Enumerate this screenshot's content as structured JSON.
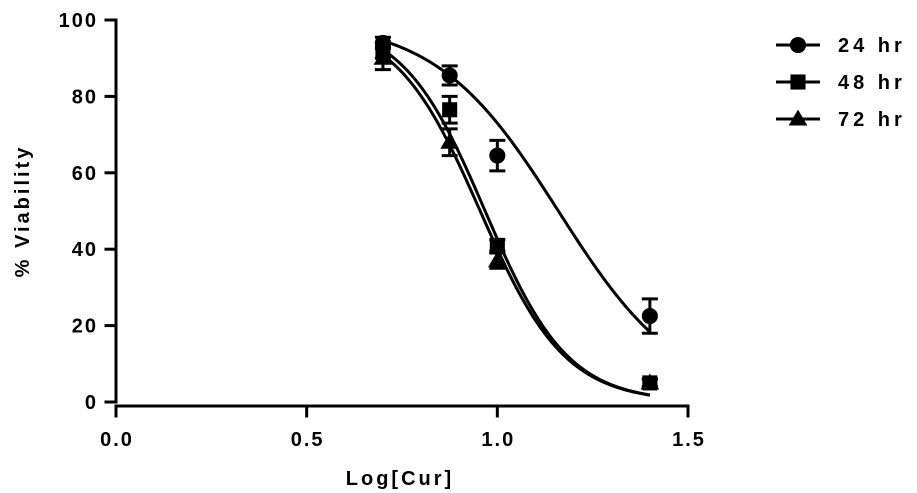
{
  "chart_data": {
    "type": "scatter",
    "title": "",
    "xlabel": "Log[Cur]",
    "ylabel": "% Viability",
    "xlim": [
      0.0,
      1.5
    ],
    "ylim": [
      0,
      100
    ],
    "x_ticks": [
      "0.0",
      "0.5",
      "1.0",
      "1.5"
    ],
    "y_ticks": [
      "0",
      "20",
      "40",
      "60",
      "80",
      "100"
    ],
    "x_tick_values": [
      0.0,
      0.5,
      1.0,
      1.5
    ],
    "y_tick_values": [
      0,
      20,
      40,
      60,
      80,
      100
    ],
    "grid": false,
    "legend_position": "top-right",
    "fit": "sigmoidal dose-response curve per series",
    "series": [
      {
        "name": "24 hr",
        "marker": "circle",
        "x": [
          0.7,
          0.875,
          1.0,
          1.4
        ],
        "y": [
          94,
          85.5,
          64.5,
          22.5
        ],
        "error": [
          1.5,
          2.5,
          4,
          4.5
        ],
        "curve": {
          "top": 100,
          "bottom": 0,
          "logIC50": 1.16,
          "hill": -2.7
        }
      },
      {
        "name": "48 hr",
        "marker": "square",
        "x": [
          0.7,
          0.875,
          1.0,
          1.4
        ],
        "y": [
          92,
          76.5,
          41,
          5
        ],
        "error": [
          2,
          3.5,
          1.5,
          1
        ],
        "curve": {
          "top": 100,
          "bottom": 0,
          "logIC50": 0.968,
          "hill": -4.0
        }
      },
      {
        "name": "72 hr",
        "marker": "triangle",
        "x": [
          0.7,
          0.875,
          1.0,
          1.4
        ],
        "y": [
          90,
          68,
          37,
          5
        ],
        "error": [
          3,
          3.5,
          2,
          1
        ],
        "curve": {
          "top": 100,
          "bottom": 0,
          "logIC50": 0.955,
          "hill": -3.9
        }
      }
    ]
  }
}
